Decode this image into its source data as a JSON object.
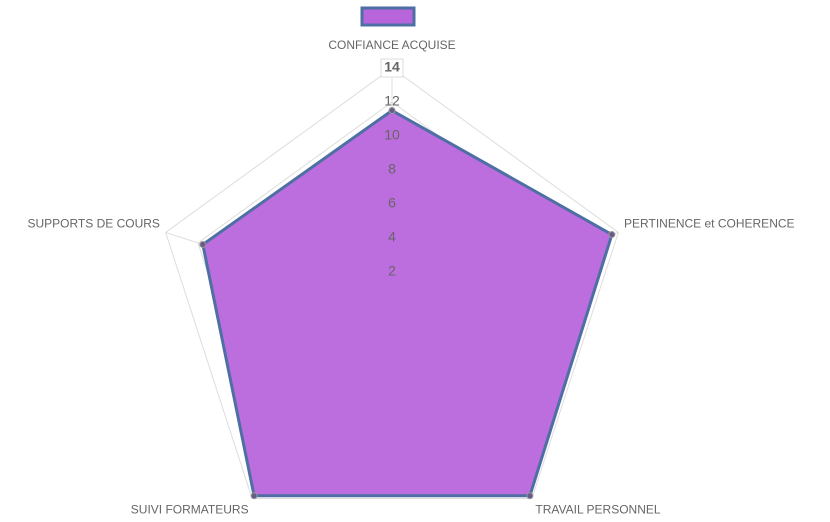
{
  "chart_data": {
    "type": "radar",
    "categories": [
      "CONFIANCE ACQUISE",
      "PERTINENCE et COHERENCE",
      "TRAVAIL PERSONNEL",
      "SUIVI FORMATEURS",
      "SUPPORTS DE COURS"
    ],
    "series": [
      {
        "color": "#b865dc",
        "values": [
          11.5,
          13.6,
          13.8,
          13.8,
          11.7
        ]
      }
    ],
    "rlim": [
      0,
      14
    ],
    "rticks": [
      2,
      4,
      6,
      8,
      10,
      12,
      14
    ],
    "grid": true,
    "legend": "top"
  }
}
